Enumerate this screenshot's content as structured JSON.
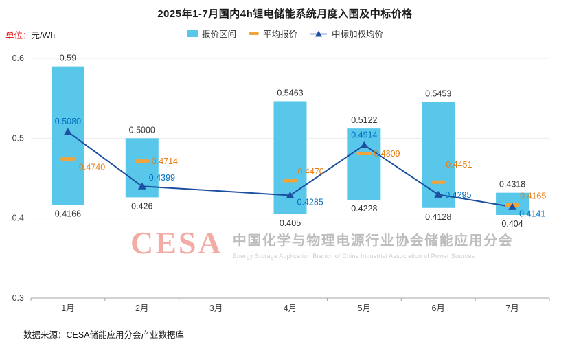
{
  "page": {
    "unit_prefix": "单位：",
    "footer": "数据来源：CESA储能应用分会产业数据库"
  },
  "watermark": {
    "logo_text": "CESA",
    "cn_text": "中国化学与物理电源行业协会储能应用分会",
    "en_text": "Energy Storage Application Branch of China Industrial Association of Power Sources"
  },
  "colors": {
    "bar": "#58C7EA",
    "avg_dash": "#F2A43C",
    "avg_label": "#E87D13",
    "line": "#1C4FA0",
    "line_label": "#0070C0",
    "axis": "#A6A6A6",
    "grid": "#EBEBEB",
    "tick_label": "#404040",
    "bar_label": "#333333",
    "unit_prefix": "#E60000"
  },
  "chart_data": {
    "type": "combo: range-bar + dash markers + line",
    "title": "2025年1-7月国内4h锂电储能系统月度入围及中标价格",
    "unit": "元/Wh",
    "categories": [
      "1月",
      "2月",
      "3月",
      "4月",
      "5月",
      "6月",
      "7月"
    ],
    "ylim": [
      0.3,
      0.6
    ],
    "yticks": [
      "0.3",
      "0.4",
      "0.5",
      "0.6"
    ],
    "grid": true,
    "legend_position": "top-center",
    "series": [
      {
        "name": "报价区间",
        "type": "range-bar",
        "low": [
          0.4166,
          0.426,
          null,
          0.405,
          0.4228,
          0.4128,
          0.404
        ],
        "high": [
          0.59,
          0.5,
          null,
          0.5463,
          0.5122,
          0.5453,
          0.4318
        ],
        "low_labels": [
          "0.4166",
          "0.426",
          null,
          "0.405",
          "0.4228",
          "0.4128",
          "0.404"
        ],
        "high_labels": [
          "0.59",
          "0.5000",
          null,
          "0.5463",
          "0.5122",
          "0.5453",
          "0.4318"
        ]
      },
      {
        "name": "平均报价",
        "type": "dash-marker",
        "values": [
          0.474,
          0.4714,
          null,
          0.447,
          0.4809,
          0.4451,
          0.4165
        ],
        "labels": [
          "0.4740",
          "0.4714",
          null,
          "0.4470",
          "0.4809",
          "0.4451",
          "0.4165"
        ],
        "label_pos": [
          "below-right",
          "right",
          null,
          "right-above",
          "right",
          "right-high",
          "right-above"
        ]
      },
      {
        "name": "中标加权均价",
        "type": "line-triangle",
        "values": [
          0.508,
          0.4399,
          null,
          0.4285,
          0.4914,
          0.4295,
          0.4141
        ],
        "labels": [
          "0.5080",
          "0.4399",
          null,
          "0.4285",
          "0.4914",
          "0.4295",
          "0.4141"
        ],
        "label_pos": [
          "above",
          "right-above",
          null,
          "below-right",
          "above",
          "right",
          "below-right"
        ]
      }
    ]
  }
}
